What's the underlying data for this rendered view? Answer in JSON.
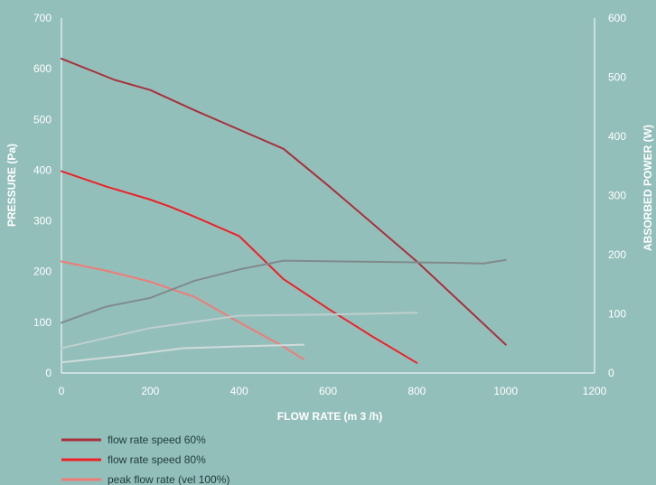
{
  "colors": {
    "background": "#93bfbb",
    "axis": "#ffffff",
    "speed60": "#a8313b",
    "speed80": "#ec2227",
    "peak": "#f07b76",
    "power_dark": "#808b8b",
    "power_light": "#bfcfcd",
    "power_lighter": "#cfdcdb"
  },
  "chart_data": {
    "type": "line",
    "xlabel": "FLOW RATE (m 3 /h)",
    "ylabel": "PRESSURE (Pa)",
    "y2label": "ABSORBED POWER (W)",
    "xlim": [
      0,
      1200
    ],
    "ylim": [
      0,
      700
    ],
    "y2lim": [
      0,
      600
    ],
    "x_ticks": [
      "0",
      "200",
      "400",
      "600",
      "800",
      "1000",
      "1200"
    ],
    "y_ticks": [
      "0",
      "100",
      "200",
      "300",
      "400",
      "500",
      "600",
      "700"
    ],
    "y2_ticks": [
      "0",
      "100",
      "200",
      "300",
      "400",
      "500",
      "600"
    ],
    "grid": false,
    "legend_position": "bottom-left",
    "series": [
      {
        "name": "flow rate speed 60%",
        "axis": "left",
        "color_key": "speed60",
        "points": [
          [
            0,
            620
          ],
          [
            120,
            578
          ],
          [
            200,
            558
          ],
          [
            300,
            518
          ],
          [
            400,
            480
          ],
          [
            500,
            442
          ],
          [
            600,
            370
          ],
          [
            700,
            295
          ],
          [
            800,
            220
          ],
          [
            900,
            138
          ],
          [
            1000,
            56
          ]
        ]
      },
      {
        "name": "flow rate speed 80%",
        "axis": "left",
        "color_key": "speed80",
        "points": [
          [
            0,
            398
          ],
          [
            100,
            368
          ],
          [
            200,
            342
          ],
          [
            245,
            328
          ],
          [
            300,
            308
          ],
          [
            400,
            270
          ],
          [
            500,
            185
          ],
          [
            600,
            127
          ],
          [
            700,
            72
          ],
          [
            800,
            20
          ]
        ]
      },
      {
        "name": "peak flow rate (vel 100%)",
        "axis": "left",
        "color_key": "peak",
        "points": [
          [
            0,
            220
          ],
          [
            100,
            202
          ],
          [
            200,
            180
          ],
          [
            300,
            150
          ],
          [
            400,
            100
          ],
          [
            500,
            52
          ],
          [
            545,
            27
          ]
        ]
      },
      {
        "name": "",
        "axis": "right",
        "color_key": "power_dark",
        "points": [
          [
            0,
            85
          ],
          [
            100,
            112
          ],
          [
            200,
            127
          ],
          [
            300,
            156
          ],
          [
            400,
            175
          ],
          [
            500,
            190
          ],
          [
            700,
            188
          ],
          [
            900,
            186
          ],
          [
            950,
            185
          ],
          [
            1000,
            191
          ]
        ]
      },
      {
        "name": "",
        "axis": "right",
        "color_key": "power_light",
        "points": [
          [
            0,
            42
          ],
          [
            200,
            76
          ],
          [
            400,
            97
          ],
          [
            600,
            99
          ],
          [
            800,
            102
          ]
        ]
      },
      {
        "name": "",
        "axis": "right",
        "color_key": "power_lighter",
        "points": [
          [
            0,
            18
          ],
          [
            150,
            30
          ],
          [
            275,
            42
          ],
          [
            400,
            45
          ],
          [
            545,
            48
          ]
        ]
      }
    ],
    "legend": [
      {
        "label": "flow rate speed 60%",
        "color_key": "speed60"
      },
      {
        "label": "flow rate speed 80%",
        "color_key": "speed80"
      },
      {
        "label": "peak flow rate (vel 100%)",
        "color_key": "peak"
      }
    ]
  }
}
